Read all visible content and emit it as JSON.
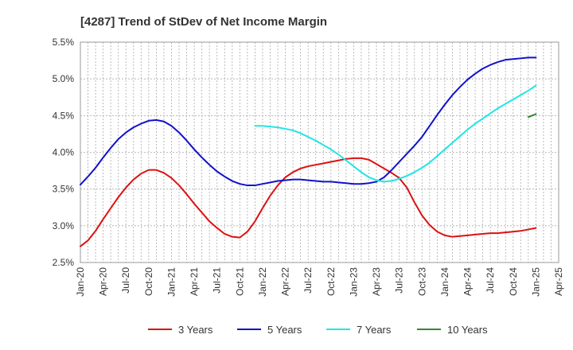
{
  "chart_data": {
    "type": "line",
    "title": "[4287]  Trend of StDev of Net Income Margin",
    "xlabel": "",
    "ylabel": "",
    "ylim": [
      2.5,
      5.5
    ],
    "yticks": [
      2.5,
      3.0,
      3.5,
      4.0,
      4.5,
      5.0,
      5.5
    ],
    "ytick_labels": [
      "2.5%",
      "3.0%",
      "3.5%",
      "4.0%",
      "4.5%",
      "5.0%",
      "5.5%"
    ],
    "xtick_labels": [
      "Jan-20",
      "Apr-20",
      "Jul-20",
      "Oct-20",
      "Jan-21",
      "Apr-21",
      "Jul-21",
      "Oct-21",
      "Jan-22",
      "Apr-22",
      "Jul-22",
      "Oct-22",
      "Jan-23",
      "Apr-23",
      "Jul-23",
      "Oct-23",
      "Jan-24",
      "Apr-24",
      "Jul-24",
      "Oct-24",
      "Jan-25",
      "Apr-25"
    ],
    "grid": true,
    "legend_position": "bottom",
    "series": [
      {
        "name": "3 Years",
        "color": "#dd1111",
        "x": [
          "Jan-20",
          "Feb-20",
          "Mar-20",
          "Apr-20",
          "May-20",
          "Jun-20",
          "Jul-20",
          "Aug-20",
          "Sep-20",
          "Oct-20",
          "Nov-20",
          "Dec-20",
          "Jan-21",
          "Feb-21",
          "Mar-21",
          "Apr-21",
          "May-21",
          "Jun-21",
          "Jul-21",
          "Aug-21",
          "Sep-21",
          "Oct-21",
          "Nov-21",
          "Dec-21",
          "Jan-22",
          "Feb-22",
          "Mar-22",
          "Apr-22",
          "May-22",
          "Jun-22",
          "Jul-22",
          "Aug-22",
          "Sep-22",
          "Oct-22",
          "Nov-22",
          "Dec-22",
          "Jan-23",
          "Feb-23",
          "Mar-23",
          "Apr-23",
          "May-23",
          "Jun-23",
          "Jul-23",
          "Aug-23",
          "Sep-23",
          "Oct-23",
          "Nov-23",
          "Dec-23",
          "Jan-24",
          "Feb-24",
          "Mar-24",
          "Apr-24",
          "May-24",
          "Jun-24",
          "Jul-24",
          "Aug-24",
          "Sep-24",
          "Oct-24",
          "Nov-24",
          "Dec-24",
          "Jan-25"
        ],
        "values": [
          2.72,
          2.8,
          2.93,
          3.09,
          3.24,
          3.39,
          3.52,
          3.63,
          3.71,
          3.76,
          3.76,
          3.72,
          3.65,
          3.55,
          3.43,
          3.3,
          3.18,
          3.06,
          2.97,
          2.89,
          2.85,
          2.84,
          2.92,
          3.06,
          3.24,
          3.41,
          3.55,
          3.66,
          3.73,
          3.78,
          3.81,
          3.83,
          3.85,
          3.87,
          3.89,
          3.91,
          3.92,
          3.92,
          3.9,
          3.84,
          3.78,
          3.72,
          3.65,
          3.52,
          3.32,
          3.14,
          3.01,
          2.92,
          2.87,
          2.85,
          2.86,
          2.87,
          2.88,
          2.89,
          2.9,
          2.9,
          2.91,
          2.92,
          2.93,
          2.95,
          2.97
        ]
      },
      {
        "name": "5 Years",
        "color": "#1111cc",
        "x": [
          "Jan-20",
          "Feb-20",
          "Mar-20",
          "Apr-20",
          "May-20",
          "Jun-20",
          "Jul-20",
          "Aug-20",
          "Sep-20",
          "Oct-20",
          "Nov-20",
          "Dec-20",
          "Jan-21",
          "Feb-21",
          "Mar-21",
          "Apr-21",
          "May-21",
          "Jun-21",
          "Jul-21",
          "Aug-21",
          "Sep-21",
          "Oct-21",
          "Nov-21",
          "Dec-21",
          "Jan-22",
          "Feb-22",
          "Mar-22",
          "Apr-22",
          "May-22",
          "Jun-22",
          "Jul-22",
          "Aug-22",
          "Sep-22",
          "Oct-22",
          "Nov-22",
          "Dec-22",
          "Jan-23",
          "Feb-23",
          "Mar-23",
          "Apr-23",
          "May-23",
          "Jun-23",
          "Jul-23",
          "Aug-23",
          "Sep-23",
          "Oct-23",
          "Nov-23",
          "Dec-23",
          "Jan-24",
          "Feb-24",
          "Mar-24",
          "Apr-24",
          "May-24",
          "Jun-24",
          "Jul-24",
          "Aug-24",
          "Sep-24",
          "Oct-24",
          "Nov-24",
          "Dec-24",
          "Jan-25"
        ],
        "values": [
          3.56,
          3.67,
          3.79,
          3.93,
          4.06,
          4.18,
          4.27,
          4.34,
          4.39,
          4.43,
          4.44,
          4.42,
          4.36,
          4.27,
          4.16,
          4.04,
          3.93,
          3.83,
          3.74,
          3.67,
          3.61,
          3.57,
          3.55,
          3.55,
          3.57,
          3.59,
          3.61,
          3.62,
          3.63,
          3.63,
          3.62,
          3.61,
          3.6,
          3.6,
          3.59,
          3.58,
          3.57,
          3.57,
          3.58,
          3.6,
          3.66,
          3.76,
          3.87,
          3.98,
          4.09,
          4.21,
          4.36,
          4.51,
          4.65,
          4.78,
          4.89,
          4.99,
          5.07,
          5.14,
          5.19,
          5.23,
          5.26,
          5.27,
          5.28,
          5.29,
          5.29
        ]
      },
      {
        "name": "7 Years",
        "color": "#22e5e5",
        "x": [
          "Dec-21",
          "Jan-22",
          "Feb-22",
          "Mar-22",
          "Apr-22",
          "May-22",
          "Jun-22",
          "Jul-22",
          "Aug-22",
          "Sep-22",
          "Oct-22",
          "Nov-22",
          "Dec-22",
          "Jan-23",
          "Feb-23",
          "Mar-23",
          "Apr-23",
          "May-23",
          "Jun-23",
          "Jul-23",
          "Aug-23",
          "Sep-23",
          "Oct-23",
          "Nov-23",
          "Dec-23",
          "Jan-24",
          "Feb-24",
          "Mar-24",
          "Apr-24",
          "May-24",
          "Jun-24",
          "Jul-24",
          "Aug-24",
          "Sep-24",
          "Oct-24",
          "Nov-24",
          "Dec-24",
          "Jan-25"
        ],
        "values": [
          4.36,
          4.36,
          4.35,
          4.34,
          4.32,
          4.3,
          4.26,
          4.21,
          4.16,
          4.1,
          4.04,
          3.97,
          3.89,
          3.81,
          3.73,
          3.66,
          3.62,
          3.6,
          3.61,
          3.64,
          3.68,
          3.73,
          3.79,
          3.86,
          3.95,
          4.04,
          4.13,
          4.22,
          4.31,
          4.39,
          4.46,
          4.53,
          4.6,
          4.66,
          4.72,
          4.78,
          4.84,
          4.91
        ]
      },
      {
        "name": "10 Years",
        "color": "#338833",
        "x": [
          "Dec-24",
          "Jan-25"
        ],
        "values": [
          4.48,
          4.52
        ]
      }
    ]
  }
}
